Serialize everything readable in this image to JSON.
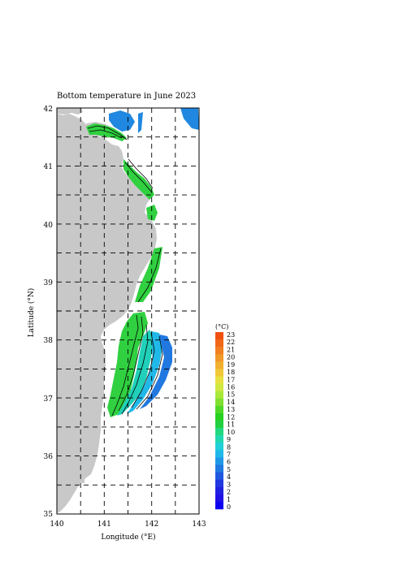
{
  "map": {
    "title": "Bottom temperature in June 2023",
    "xlabel": "Longitude (°E)",
    "ylabel": "Latitude (°N)",
    "lon_ticks": [
      "140",
      "141",
      "142",
      "143"
    ],
    "lat_ticks": [
      "42",
      "41",
      "40",
      "39",
      "38",
      "37",
      "36",
      "35"
    ],
    "lon_range": [
      140,
      143
    ],
    "lat_range": [
      35,
      42
    ],
    "grid": "dashed every 0.5°",
    "land_color": "#c8c8c8"
  },
  "colorbar": {
    "unit": "(°C)",
    "labels": [
      "23",
      "22",
      "21",
      "20",
      "19",
      "18",
      "17",
      "16",
      "15",
      "14",
      "13",
      "12",
      "11",
      "10",
      "9",
      "8",
      "7",
      "6",
      "5",
      "4",
      "3",
      "2",
      "1",
      "0"
    ],
    "colors_top_to_bottom": [
      "#f05010",
      "#f06818",
      "#f08020",
      "#f09828",
      "#f0b030",
      "#f0c838",
      "#e8e040",
      "#d0e840",
      "#a8e838",
      "#80e030",
      "#50d828",
      "#28d020",
      "#20d040",
      "#20d880",
      "#20d8b0",
      "#20d0d8",
      "#20b8e8",
      "#2098e8",
      "#2078e0",
      "#2058e0",
      "#2038e0",
      "#2020e0",
      "#2010e8",
      "#1000f0"
    ]
  },
  "legend_note": "Colors: temperature scale 0–23 °C; contours in black"
}
